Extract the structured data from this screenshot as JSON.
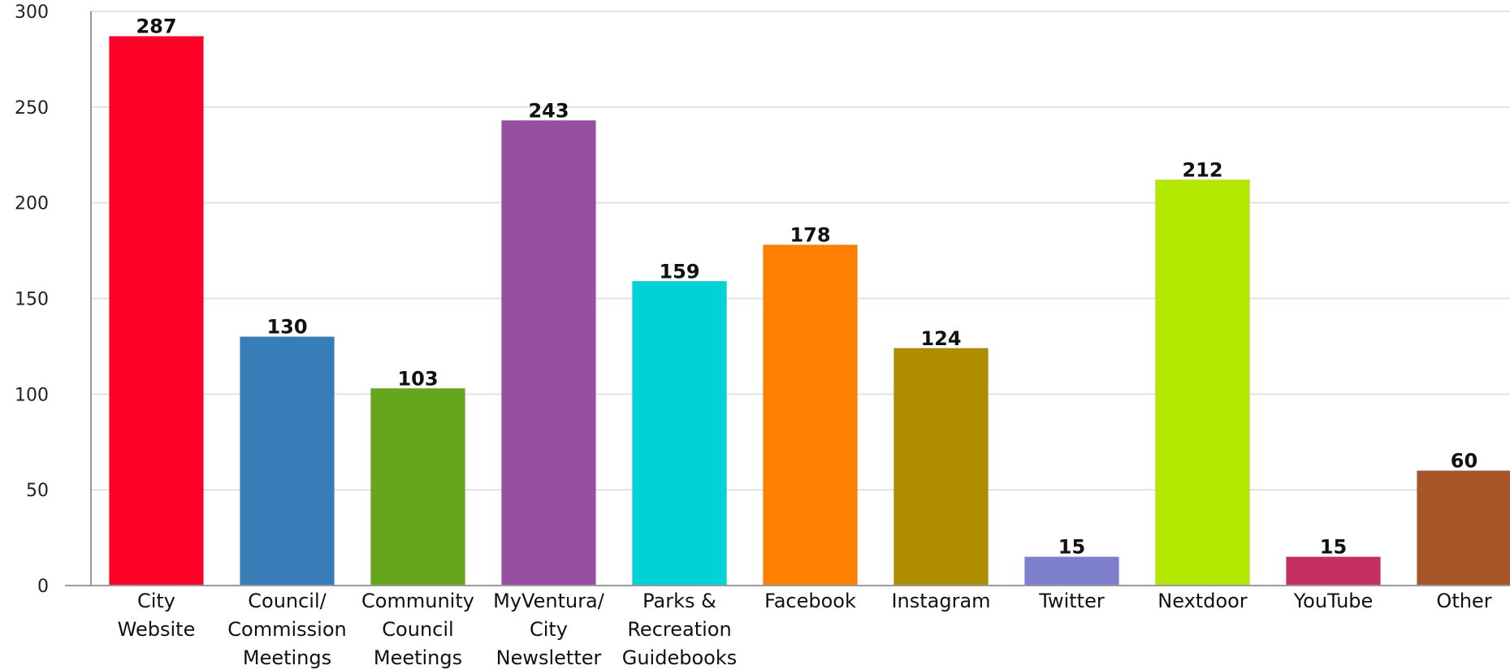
{
  "chart_data": {
    "type": "bar",
    "title": "",
    "xlabel": "",
    "ylabel": "",
    "ylim": [
      0,
      300
    ],
    "yticks": [
      0,
      50,
      100,
      150,
      200,
      250,
      300
    ],
    "grid": true,
    "legend": "none",
    "categories": [
      [
        "City",
        "Website"
      ],
      [
        "Council/",
        "Commission",
        "Meetings"
      ],
      [
        "Community",
        "Council",
        "Meetings"
      ],
      [
        "MyVentura/",
        "City",
        "Newsletter"
      ],
      [
        "Parks &",
        "Recreation",
        "Guidebooks"
      ],
      [
        "Facebook"
      ],
      [
        "Instagram"
      ],
      [
        "Twitter"
      ],
      [
        "Nextdoor"
      ],
      [
        "YouTube"
      ],
      [
        "Other"
      ]
    ],
    "values": [
      287,
      130,
      103,
      243,
      159,
      178,
      124,
      15,
      212,
      15,
      60
    ],
    "colors": [
      "#ff0029",
      "#377eb8",
      "#66a61e",
      "#984ea3",
      "#00d2d5",
      "#ff7f00",
      "#af8d00",
      "#7f80cd",
      "#b3e900",
      "#c42e60",
      "#a65628"
    ]
  }
}
